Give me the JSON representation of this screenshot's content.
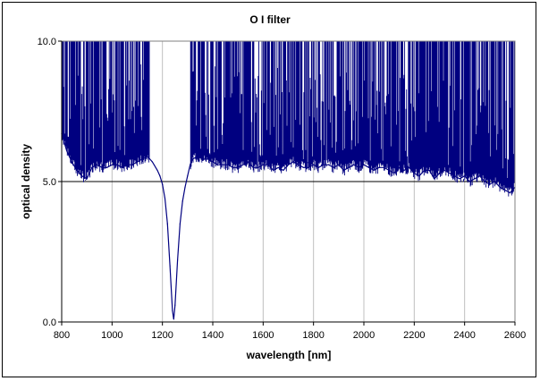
{
  "chart_data": {
    "type": "line",
    "title": "O I filter",
    "xlabel": "wavelength [nm]",
    "ylabel": "optical density",
    "xlim": [
      800,
      2600
    ],
    "ylim": [
      0,
      10
    ],
    "x_ticks": [
      800,
      1000,
      1200,
      1400,
      1600,
      1800,
      2000,
      2200,
      2400,
      2600
    ],
    "x_tick_labels": [
      "800",
      "1000",
      "1200",
      "1400",
      "1600",
      "1800",
      "2000",
      "2200",
      "2400",
      "2600"
    ],
    "y_ticks": [
      0,
      5,
      10
    ],
    "y_tick_labels": [
      "0.0",
      "5.0",
      "10.0"
    ],
    "grid": "vertical",
    "reference_line_y": 5.0,
    "series": [
      {
        "color": "#000080",
        "x": [
          800,
          820,
          840,
          860,
          880,
          900,
          920,
          940,
          960,
          980,
          1000,
          1020,
          1040,
          1060,
          1080,
          1100,
          1120,
          1140,
          1160,
          1180,
          1190,
          1200,
          1210,
          1220,
          1230,
          1240,
          1245,
          1250,
          1260,
          1270,
          1280,
          1290,
          1300,
          1310,
          1320,
          1340,
          1360,
          1380,
          1400,
          1420,
          1440,
          1460,
          1480,
          1500,
          1520,
          1540,
          1560,
          1580,
          1600,
          1620,
          1640,
          1660,
          1680,
          1700,
          1720,
          1740,
          1760,
          1780,
          1800,
          1820,
          1840,
          1860,
          1880,
          1900,
          1920,
          1940,
          1960,
          1980,
          2000,
          2020,
          2040,
          2060,
          2080,
          2100,
          2120,
          2140,
          2160,
          2180,
          2200,
          2220,
          2240,
          2260,
          2280,
          2300,
          2320,
          2340,
          2360,
          2380,
          2400,
          2420,
          2440,
          2460,
          2480,
          2500,
          2520,
          2540,
          2560,
          2580,
          2600
        ],
        "y": [
          6.7,
          6.1,
          5.7,
          5.4,
          5.2,
          5.1,
          5.5,
          5.6,
          5.5,
          5.5,
          5.6,
          5.6,
          5.5,
          5.6,
          5.6,
          5.7,
          5.8,
          5.9,
          5.7,
          5.4,
          5.2,
          4.9,
          4.4,
          3.5,
          2.0,
          0.4,
          0.1,
          0.6,
          2.2,
          3.5,
          4.3,
          4.8,
          5.2,
          5.6,
          5.8,
          5.9,
          5.8,
          5.8,
          5.7,
          5.6,
          5.6,
          5.6,
          5.5,
          5.5,
          5.6,
          5.7,
          5.5,
          5.5,
          5.6,
          5.6,
          5.4,
          5.5,
          5.4,
          5.6,
          5.7,
          5.6,
          5.5,
          5.5,
          5.6,
          5.5,
          5.6,
          5.6,
          5.5,
          5.6,
          5.4,
          5.5,
          5.6,
          5.5,
          5.6,
          5.5,
          5.4,
          5.5,
          5.5,
          5.4,
          5.3,
          5.5,
          5.4,
          5.5,
          5.3,
          5.2,
          5.4,
          5.4,
          5.1,
          5.3,
          5.4,
          5.3,
          5.2,
          5.1,
          5.2,
          5.0,
          5.1,
          5.2,
          5.0,
          4.9,
          5.0,
          4.8,
          4.7,
          4.6,
          4.8
        ]
      }
    ],
    "spikes_to_top_ranges": [
      [
        800,
        1150
      ],
      [
        1310,
        2600
      ]
    ]
  }
}
